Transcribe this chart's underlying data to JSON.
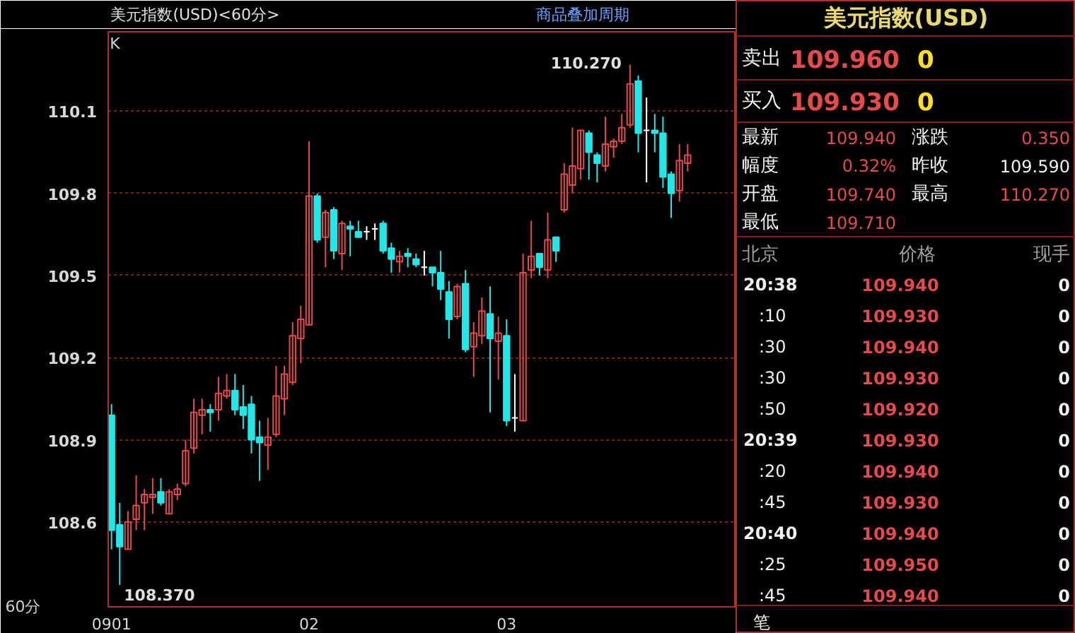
{
  "chart_data": [
    {
      "type": "candlestick",
      "title": "美元指数(USD)<60分>",
      "categories": [
        "0901",
        null,
        null,
        null,
        null,
        null,
        null,
        null,
        null,
        null,
        null,
        null,
        null,
        null,
        null,
        null,
        null,
        null,
        null,
        null,
        null,
        null,
        null,
        null,
        "02",
        null,
        null,
        null,
        null,
        null,
        null,
        null,
        null,
        null,
        null,
        null,
        null,
        null,
        null,
        null,
        null,
        null,
        null,
        null,
        null,
        null,
        null,
        null,
        "03",
        null,
        null,
        null,
        null,
        null,
        null,
        null,
        null,
        null,
        null,
        null,
        null,
        null,
        null,
        null,
        null,
        null,
        null,
        null,
        null,
        null,
        null
      ],
      "ohlc": [
        [
          108.99,
          109.03,
          108.5,
          108.57
        ],
        [
          108.59,
          108.67,
          108.37,
          108.51
        ],
        [
          108.5,
          108.64,
          108.5,
          108.6
        ],
        [
          108.61,
          108.77,
          108.57,
          108.66
        ],
        [
          108.67,
          108.72,
          108.57,
          108.7
        ],
        [
          108.69,
          108.76,
          108.63,
          108.7
        ],
        [
          108.71,
          108.76,
          108.66,
          108.67
        ],
        [
          108.63,
          108.72,
          108.63,
          108.71
        ],
        [
          108.7,
          108.74,
          108.68,
          108.72
        ],
        [
          108.74,
          108.9,
          108.73,
          108.86
        ],
        [
          108.87,
          109.05,
          108.85,
          109.0
        ],
        [
          108.99,
          109.05,
          108.92,
          109.01
        ],
        [
          109.01,
          109.03,
          108.93,
          109.0
        ],
        [
          109.01,
          109.13,
          108.97,
          109.07
        ],
        [
          109.06,
          109.14,
          109.05,
          109.08
        ],
        [
          109.08,
          109.14,
          108.99,
          109.01
        ],
        [
          109.02,
          109.1,
          108.94,
          108.99
        ],
        [
          109.03,
          109.06,
          108.85,
          108.9
        ],
        [
          108.91,
          108.97,
          108.75,
          108.89
        ],
        [
          108.88,
          108.98,
          108.79,
          108.91
        ],
        [
          108.92,
          109.17,
          108.91,
          109.06
        ],
        [
          109.05,
          109.17,
          108.99,
          109.14
        ],
        [
          109.11,
          109.33,
          109.1,
          109.28
        ],
        [
          109.27,
          109.39,
          109.18,
          109.34
        ],
        [
          109.32,
          109.99,
          109.32,
          109.79
        ],
        [
          109.79,
          109.8,
          109.62,
          109.63
        ],
        [
          109.64,
          109.74,
          109.53,
          109.73
        ],
        [
          109.74,
          109.75,
          109.56,
          109.59
        ],
        [
          109.58,
          109.7,
          109.52,
          109.69
        ],
        [
          109.68,
          109.7,
          109.57,
          109.67
        ],
        [
          109.66,
          109.7,
          109.64,
          109.64
        ],
        [
          109.66,
          109.68,
          109.63,
          109.66
        ],
        [
          109.67,
          109.69,
          109.63,
          109.67
        ],
        [
          109.69,
          109.7,
          109.58,
          109.59
        ],
        [
          109.6,
          109.62,
          109.51,
          109.56
        ],
        [
          109.55,
          109.59,
          109.51,
          109.57
        ],
        [
          109.58,
          109.6,
          109.53,
          109.57
        ],
        [
          109.56,
          109.58,
          109.53,
          109.54
        ],
        [
          109.53,
          109.59,
          109.5,
          109.53
        ],
        [
          109.53,
          109.53,
          109.46,
          109.51
        ],
        [
          109.51,
          109.59,
          109.41,
          109.45
        ],
        [
          109.44,
          109.48,
          109.27,
          109.34
        ],
        [
          109.35,
          109.47,
          109.34,
          109.46
        ],
        [
          109.47,
          109.52,
          109.22,
          109.23
        ],
        [
          109.24,
          109.33,
          109.13,
          109.29
        ],
        [
          109.28,
          109.42,
          109.25,
          109.37
        ],
        [
          109.36,
          109.46,
          109.0,
          109.27
        ],
        [
          109.26,
          109.35,
          109.12,
          109.29
        ],
        [
          109.28,
          109.34,
          108.95,
          108.97
        ],
        [
          108.98,
          109.14,
          108.93,
          108.98
        ],
        [
          108.97,
          109.58,
          108.97,
          109.51
        ],
        [
          109.52,
          109.7,
          109.49,
          109.57
        ],
        [
          109.58,
          109.58,
          109.5,
          109.53
        ],
        [
          109.52,
          109.73,
          109.49,
          109.63
        ],
        [
          109.64,
          109.64,
          109.55,
          109.59
        ],
        [
          109.74,
          109.91,
          109.73,
          109.87
        ],
        [
          109.83,
          110.04,
          109.8,
          109.9
        ],
        [
          109.89,
          110.03,
          109.85,
          110.03
        ],
        [
          110.02,
          110.03,
          109.85,
          109.95
        ],
        [
          109.94,
          109.95,
          109.84,
          109.91
        ],
        [
          109.9,
          110.08,
          109.88,
          109.98
        ],
        [
          109.97,
          110.0,
          109.93,
          109.99
        ],
        [
          109.99,
          110.09,
          109.98,
          110.04
        ],
        [
          110.05,
          110.27,
          110.04,
          110.2
        ],
        [
          110.21,
          110.23,
          109.95,
          110.02
        ],
        [
          110.03,
          110.15,
          109.84,
          110.03
        ],
        [
          110.03,
          110.09,
          109.95,
          110.02
        ],
        [
          110.02,
          110.08,
          109.82,
          109.86
        ],
        [
          109.87,
          109.88,
          109.71,
          109.8
        ],
        [
          109.81,
          109.98,
          109.77,
          109.92
        ],
        [
          109.91,
          109.98,
          109.88,
          109.94
        ]
      ],
      "ylim": [
        108.29,
        110.39
      ],
      "yticks": [
        108.6,
        108.9,
        109.2,
        109.5,
        109.8,
        110.1
      ],
      "grid": "y",
      "annotations": [
        "K",
        "60分",
        "商品叠加",
        "周期",
        "108.370",
        "110.270"
      ]
    },
    {
      "type": "other",
      "title": "美元指数(USD)",
      "annotations": [
        "卖出",
        "109.960",
        "0",
        "买入",
        "109.930",
        "0",
        "最新",
        "109.940",
        "涨跌",
        "0.350",
        "幅度",
        "0.32%",
        "昨收",
        "109.590",
        "开盘",
        "109.740",
        "最高",
        "110.270",
        "最低",
        "109.710",
        "北京",
        "价格",
        "现手",
        "20:38",
        "109.940",
        "0",
        ":10",
        "109.930",
        "0",
        ":30",
        "109.940",
        "0",
        ":30",
        "109.930",
        "0",
        ":50",
        "109.920",
        "0",
        "20:39",
        "109.930",
        "0",
        ":20",
        "109.940",
        "0",
        ":45",
        "109.930",
        "0",
        "20:40",
        "109.940",
        "0",
        ":25",
        "109.950",
        "0",
        ":45",
        "109.940",
        "0",
        "笔"
      ]
    }
  ]
}
